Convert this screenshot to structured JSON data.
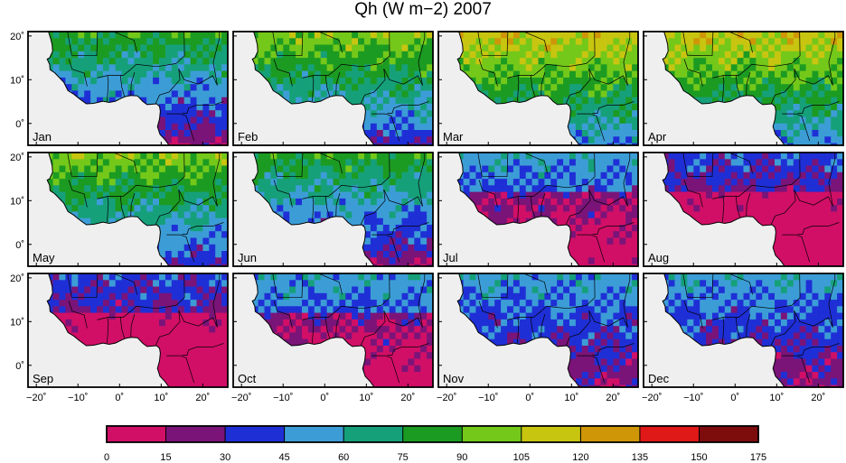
{
  "chart_data": {
    "type": "heatmap",
    "title": "Qh (W m−2) 2007",
    "xlabel": "",
    "ylabel": "",
    "months": [
      "Jan",
      "Feb",
      "Mar",
      "Apr",
      "May",
      "Jun",
      "Jul",
      "Aug",
      "Sep",
      "Oct",
      "Nov",
      "Dec"
    ],
    "lon_range": [
      -22,
      26
    ],
    "lat_range": [
      -5,
      21
    ],
    "x_ticks": [
      -20,
      -10,
      0,
      10,
      20
    ],
    "x_tick_labels": [
      "−20˚",
      "−10˚",
      "0˚",
      "10˚",
      "20˚"
    ],
    "y_ticks": [
      0,
      10,
      20
    ],
    "y_tick_labels": [
      "0˚",
      "10˚",
      "20˚"
    ],
    "colorbar": {
      "levels": [
        0,
        15,
        30,
        45,
        60,
        75,
        90,
        105,
        120,
        135,
        150,
        175
      ],
      "labels": [
        "0",
        "15",
        "30",
        "45",
        "60",
        "75",
        "90",
        "105",
        "120",
        "135",
        "150",
        "175"
      ],
      "colors": [
        "#d10f67",
        "#7a1479",
        "#1f2fd6",
        "#3c9dd6",
        "#16a07a",
        "#1c9b22",
        "#74c81a",
        "#c8c510",
        "#cf9707",
        "#df1818",
        "#7d0c0c"
      ]
    },
    "monthly_mean_class": [
      3,
      4,
      5,
      5,
      4,
      3,
      2,
      1,
      1,
      2,
      2,
      2
    ],
    "background_color": "#efefef"
  }
}
